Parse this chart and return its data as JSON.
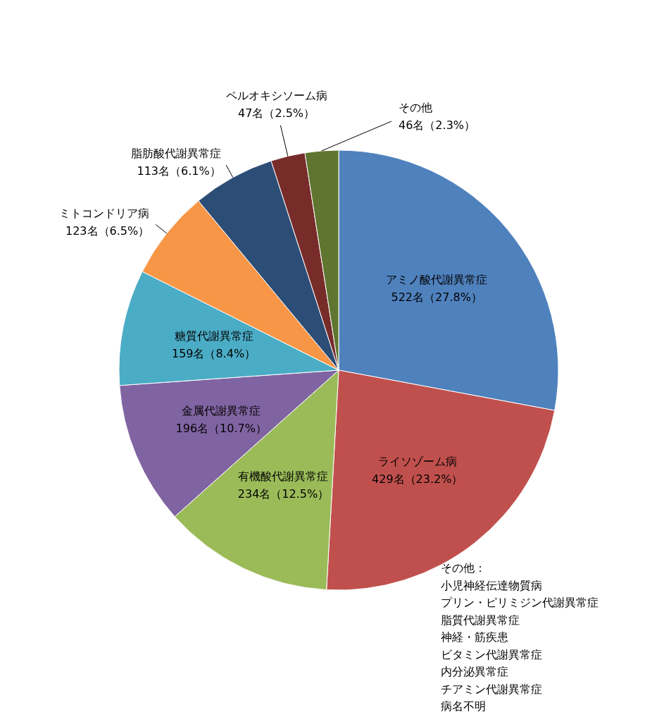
{
  "chart_data": {
    "type": "pie",
    "categories": [
      "アミノ酸代謝異常症",
      "ライソゾーム病",
      "有機酸代謝異常症",
      "金属代謝異常症",
      "糖質代謝異常症",
      "ミトコンドリア病",
      "脂肪酸代謝異常症",
      "ペルオキシソーム病",
      "その他"
    ],
    "values": [
      522,
      429,
      234,
      196,
      159,
      123,
      113,
      47,
      46
    ],
    "value_labels": [
      "522名（27.8%）",
      "429名（23.2%）",
      "234名（12.5%）",
      "196名（10.7%）",
      "159名（8.4%）",
      "123名（6.5%）",
      "113名（6.1%）",
      "47名（2.5%）",
      "46名（2.3%）"
    ],
    "colors": [
      "#4f81bd",
      "#c0504d",
      "#9bbb59",
      "#8064a2",
      "#4bacc6",
      "#f79646",
      "#2c4d75",
      "#772c2a",
      "#5f7530"
    ],
    "legend": false,
    "annotations": [
      "その他：",
      "小児神経伝達物質病",
      "プリン・ピリミジン代謝異常症",
      "脂質代謝異常症",
      "神経・筋疾患",
      "ビタミン代謝異常症",
      "内分泌異常症",
      "チアミン代謝異常症",
      "病名不明"
    ]
  }
}
